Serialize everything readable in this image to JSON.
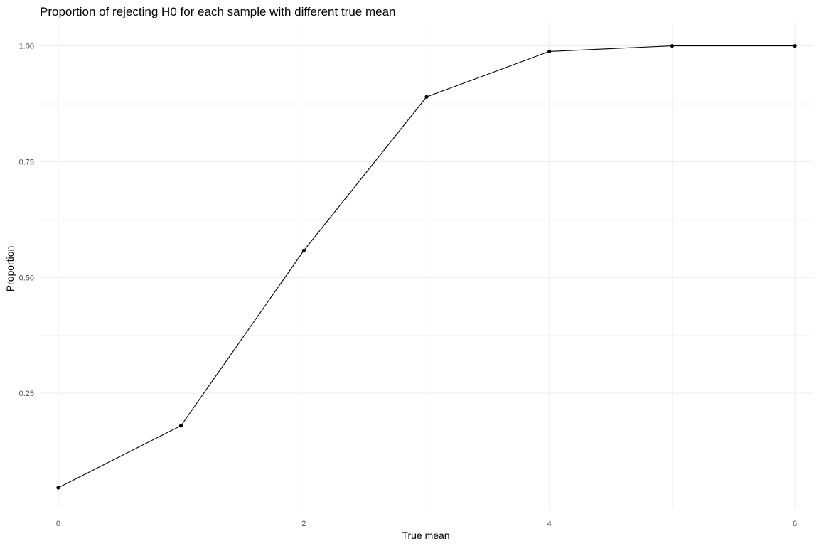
{
  "chart_data": {
    "type": "line",
    "title": "Proportion of rejecting H0 for each sample with different true mean",
    "xlabel": "True mean",
    "ylabel": "Proportion",
    "x": [
      0,
      1,
      2,
      3,
      4,
      5,
      6
    ],
    "series": [
      {
        "name": "Proportion",
        "values": [
          0.046,
          0.18,
          0.558,
          0.89,
          0.988,
          1.0,
          1.0
        ]
      }
    ],
    "xlim": [
      -0.15,
      6.15
    ],
    "ylim": [
      0.0,
      1.05
    ],
    "x_ticks": [
      0,
      2,
      4,
      6
    ],
    "x_tick_labels": [
      "0",
      "2",
      "4",
      "6"
    ],
    "x_minor_ticks": [
      1,
      3,
      5
    ],
    "y_ticks": [
      0.25,
      0.5,
      0.75,
      1.0
    ],
    "y_tick_labels": [
      "0.25",
      "0.50",
      "0.75",
      "1.00"
    ],
    "y_minor_ticks": [
      0.125,
      0.375,
      0.625,
      0.875
    ],
    "grid": true,
    "legend": "none",
    "colors": {
      "line": "#000000",
      "point": "#000000",
      "grid_major": "#ebebeb",
      "grid_minor": "#f2f2f2"
    }
  }
}
